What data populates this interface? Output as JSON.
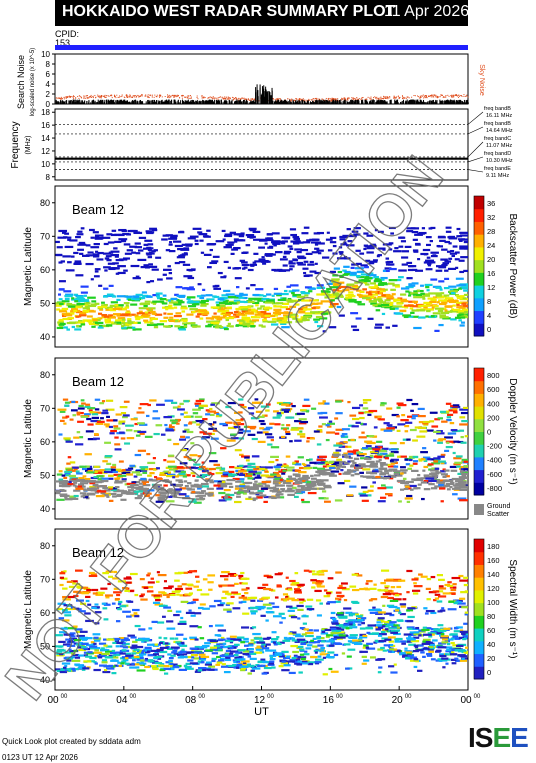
{
  "header": {
    "title": "HOKKAIDO WEST RADAR SUMMARY PLOT",
    "date": "11 Apr 2026"
  },
  "cpid": {
    "label": "CPID:",
    "value": "153"
  },
  "watermark": "NOT FOR PUBLICATION",
  "noise_panel": {
    "ylabel_main": "Search Noise",
    "ylabel_sub": "log-scaled noise (x 10^-5)",
    "right_label": "Sky Noise",
    "yticks": [
      "0",
      "2",
      "4",
      "6",
      "8",
      "10"
    ]
  },
  "freq_panel": {
    "ylabel": "Frequency",
    "ylabel_unit": "(MHz)",
    "yticks": [
      "8",
      "10",
      "12",
      "14",
      "16",
      "18"
    ],
    "bands": [
      {
        "name": "freq bandB",
        "value": "16.11 MHz"
      },
      {
        "name": "freq bandB",
        "value": "14.64 MHz"
      },
      {
        "name": "freq bandC",
        "value": "11.07 MHz"
      },
      {
        "name": "freq bandD",
        "value": "10.30 MHz"
      },
      {
        "name": "freq bandE",
        "value": "9.11 MHz"
      }
    ]
  },
  "panels": [
    {
      "beam": "Beam 12",
      "ylabel": "Magnetic Latitude",
      "cbar_label": "Backscatter Power (dB)",
      "cbar_ticks": [
        "0",
        "4",
        "8",
        "12",
        "16",
        "20",
        "24",
        "28",
        "32",
        "36"
      ]
    },
    {
      "beam": "Beam 12",
      "ylabel": "Magnetic Latitude",
      "cbar_label": "Doppler Velocity (m s⁻¹)",
      "cbar_ticks": [
        "-800",
        "-600",
        "-400",
        "-200",
        "0",
        "200",
        "400",
        "600",
        "800"
      ],
      "ground_label1": "Ground",
      "ground_label2": "Scatter"
    },
    {
      "beam": "Beam 12",
      "ylabel": "Magnetic Latitude",
      "cbar_label": "Spectral Width (m s⁻¹)",
      "cbar_ticks": [
        "0",
        "20",
        "40",
        "60",
        "80",
        "100",
        "120",
        "140",
        "160",
        "180"
      ]
    }
  ],
  "chart_data": {
    "type": "heatmap",
    "x_axis": {
      "label": "UT",
      "ticks": [
        "00",
        "04",
        "08",
        "12",
        "16",
        "20",
        "00"
      ],
      "tick_sup": "00",
      "range_hours": [
        0,
        24
      ]
    },
    "y_axis": {
      "label": "Magnetic Latitude",
      "ticks": [
        40,
        50,
        60,
        70,
        80
      ],
      "range": [
        37,
        85
      ]
    },
    "noise_range": [
      0,
      10
    ],
    "freq_range": [
      7.5,
      18.5
    ],
    "freq_bands_mhz": [
      16.11,
      14.64,
      11.07,
      10.3,
      9.11
    ],
    "operating_freq_mhz": 10.8,
    "colors": {
      "header": "#000000",
      "cpid_bar": "#2020ff",
      "sky_noise": "#e05020",
      "ground_scatter": "#888888",
      "watermark": "#666666"
    }
  },
  "footer": {
    "line1": "Quick Look plot created by sddata adm",
    "line2": "0123 UT 12 Apr 2026",
    "logo": "ISEE"
  }
}
